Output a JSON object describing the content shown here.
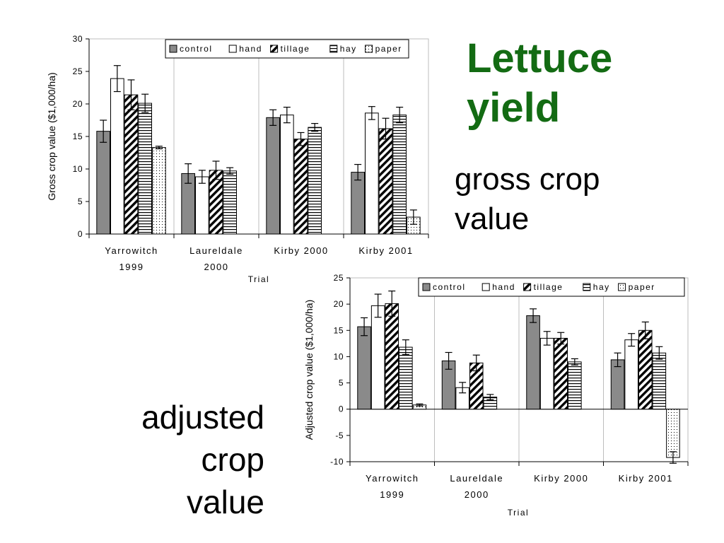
{
  "slide": {
    "title_line1": "Lettuce",
    "title_line2": "yield",
    "caption_gross_line1": "gross crop",
    "caption_gross_line2": "value",
    "caption_adj_line1": "adjusted",
    "caption_adj_line2": "crop",
    "caption_adj_line3": "value"
  },
  "chart_data": [
    {
      "type": "bar",
      "ylabel": "Gross crop value ($1,000/ha)",
      "xlabel": "Trial",
      "categories": [
        [
          "Yarrowitch",
          "1999"
        ],
        [
          "Laureldale",
          "2000"
        ],
        [
          "Kirby 2000",
          ""
        ],
        [
          "Kirby 2001",
          ""
        ]
      ],
      "ylim": [
        0,
        30
      ],
      "yticks": [
        0,
        5,
        10,
        15,
        20,
        25,
        30
      ],
      "grid": false,
      "legend_position": "top",
      "series": [
        {
          "name": "control",
          "pattern": "solid-gray",
          "values": [
            15.8,
            9.3,
            17.9,
            9.5
          ],
          "errors": [
            1.7,
            1.5,
            1.2,
            1.2
          ]
        },
        {
          "name": "hand",
          "pattern": "white",
          "values": [
            23.9,
            8.8,
            18.3,
            18.6
          ],
          "errors": [
            2.0,
            1.0,
            1.2,
            1.0
          ]
        },
        {
          "name": "tillage",
          "pattern": "diagonal-stripe",
          "values": [
            21.4,
            9.8,
            14.6,
            16.2
          ],
          "errors": [
            2.3,
            1.4,
            1.0,
            1.6
          ]
        },
        {
          "name": "hay",
          "pattern": "horizontal-stripe",
          "values": [
            20.1,
            9.7,
            16.4,
            18.3
          ],
          "errors": [
            1.4,
            0.5,
            0.6,
            1.2
          ]
        },
        {
          "name": "paper",
          "pattern": "dotted",
          "values": [
            13.3,
            null,
            null,
            2.6
          ],
          "errors": [
            0.2,
            null,
            null,
            1.1
          ]
        }
      ]
    },
    {
      "type": "bar",
      "ylabel": "Adjusted crop value ($1,000/ha)",
      "xlabel": "Trial",
      "categories": [
        [
          "Yarrowitch",
          "1999"
        ],
        [
          "Laureldale",
          "2000"
        ],
        [
          "Kirby 2000",
          ""
        ],
        [
          "Kirby 2001",
          ""
        ]
      ],
      "ylim": [
        -10,
        25
      ],
      "yticks": [
        -10,
        -5,
        0,
        5,
        10,
        15,
        20,
        25
      ],
      "grid": false,
      "legend_position": "top",
      "series": [
        {
          "name": "control",
          "pattern": "solid-gray",
          "values": [
            15.7,
            9.2,
            17.8,
            9.4
          ],
          "errors": [
            1.7,
            1.6,
            1.3,
            1.3
          ]
        },
        {
          "name": "hand",
          "pattern": "white",
          "values": [
            19.7,
            4.1,
            13.5,
            13.2
          ],
          "errors": [
            2.2,
            1.0,
            1.3,
            1.2
          ]
        },
        {
          "name": "tillage",
          "pattern": "diagonal-stripe",
          "values": [
            20.1,
            8.8,
            13.5,
            15.0
          ],
          "errors": [
            2.4,
            1.5,
            1.1,
            1.6
          ]
        },
        {
          "name": "hay",
          "pattern": "horizontal-stripe",
          "values": [
            11.8,
            2.3,
            9.0,
            10.7
          ],
          "errors": [
            1.4,
            0.5,
            0.6,
            1.2
          ]
        },
        {
          "name": "paper",
          "pattern": "dotted",
          "values": [
            0.8,
            null,
            null,
            -9.2
          ],
          "errors": [
            0.2,
            null,
            null,
            1.1
          ]
        }
      ]
    }
  ]
}
